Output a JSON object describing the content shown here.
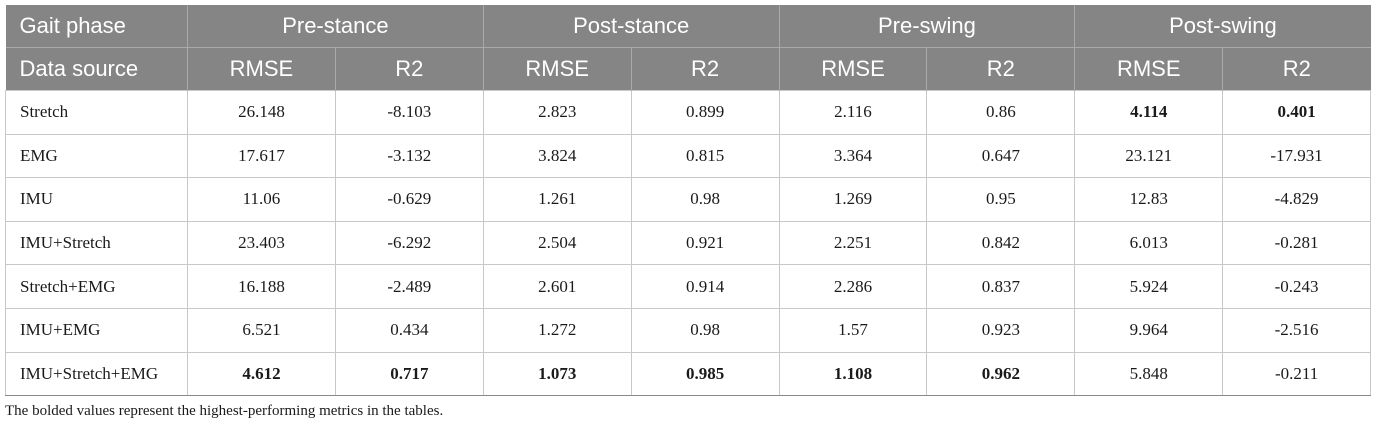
{
  "table": {
    "header_row1": {
      "label": "Gait phase",
      "phases": [
        "Pre-stance",
        "Post-stance",
        "Pre-swing",
        "Post-swing"
      ]
    },
    "header_row2": {
      "label": "Data source",
      "metrics": [
        "RMSE",
        "R2",
        "RMSE",
        "R2",
        "RMSE",
        "R2",
        "RMSE",
        "R2"
      ]
    },
    "rows": [
      {
        "source": "Stretch",
        "values": [
          "26.148",
          "-8.103",
          "2.823",
          "0.899",
          "2.116",
          "0.86",
          "4.114",
          "0.401"
        ],
        "bold": [
          false,
          false,
          false,
          false,
          false,
          false,
          true,
          true
        ]
      },
      {
        "source": "EMG",
        "values": [
          "17.617",
          "-3.132",
          "3.824",
          "0.815",
          "3.364",
          "0.647",
          "23.121",
          "-17.931"
        ],
        "bold": [
          false,
          false,
          false,
          false,
          false,
          false,
          false,
          false
        ]
      },
      {
        "source": "IMU",
        "values": [
          "11.06",
          "-0.629",
          "1.261",
          "0.98",
          "1.269",
          "0.95",
          "12.83",
          "-4.829"
        ],
        "bold": [
          false,
          false,
          false,
          false,
          false,
          false,
          false,
          false
        ]
      },
      {
        "source": "IMU+Stretch",
        "values": [
          "23.403",
          "-6.292",
          "2.504",
          "0.921",
          "2.251",
          "0.842",
          "6.013",
          "-0.281"
        ],
        "bold": [
          false,
          false,
          false,
          false,
          false,
          false,
          false,
          false
        ]
      },
      {
        "source": "Stretch+EMG",
        "values": [
          "16.188",
          "-2.489",
          "2.601",
          "0.914",
          "2.286",
          "0.837",
          "5.924",
          "-0.243"
        ],
        "bold": [
          false,
          false,
          false,
          false,
          false,
          false,
          false,
          false
        ]
      },
      {
        "source": "IMU+EMG",
        "values": [
          "6.521",
          "0.434",
          "1.272",
          "0.98",
          "1.57",
          "0.923",
          "9.964",
          "-2.516"
        ],
        "bold": [
          false,
          false,
          false,
          false,
          false,
          false,
          false,
          false
        ]
      },
      {
        "source": "IMU+Stretch+EMG",
        "values": [
          "4.612",
          "0.717",
          "1.073",
          "0.985",
          "1.108",
          "0.962",
          "5.848",
          "-0.211"
        ],
        "bold": [
          true,
          true,
          true,
          true,
          true,
          true,
          false,
          false
        ]
      }
    ]
  },
  "footnote": "The bolded values represent the highest-performing metrics in the tables.",
  "colors": {
    "header_bg": "#858585",
    "header_text": "#ffffff",
    "border": "#c8c8c8"
  }
}
